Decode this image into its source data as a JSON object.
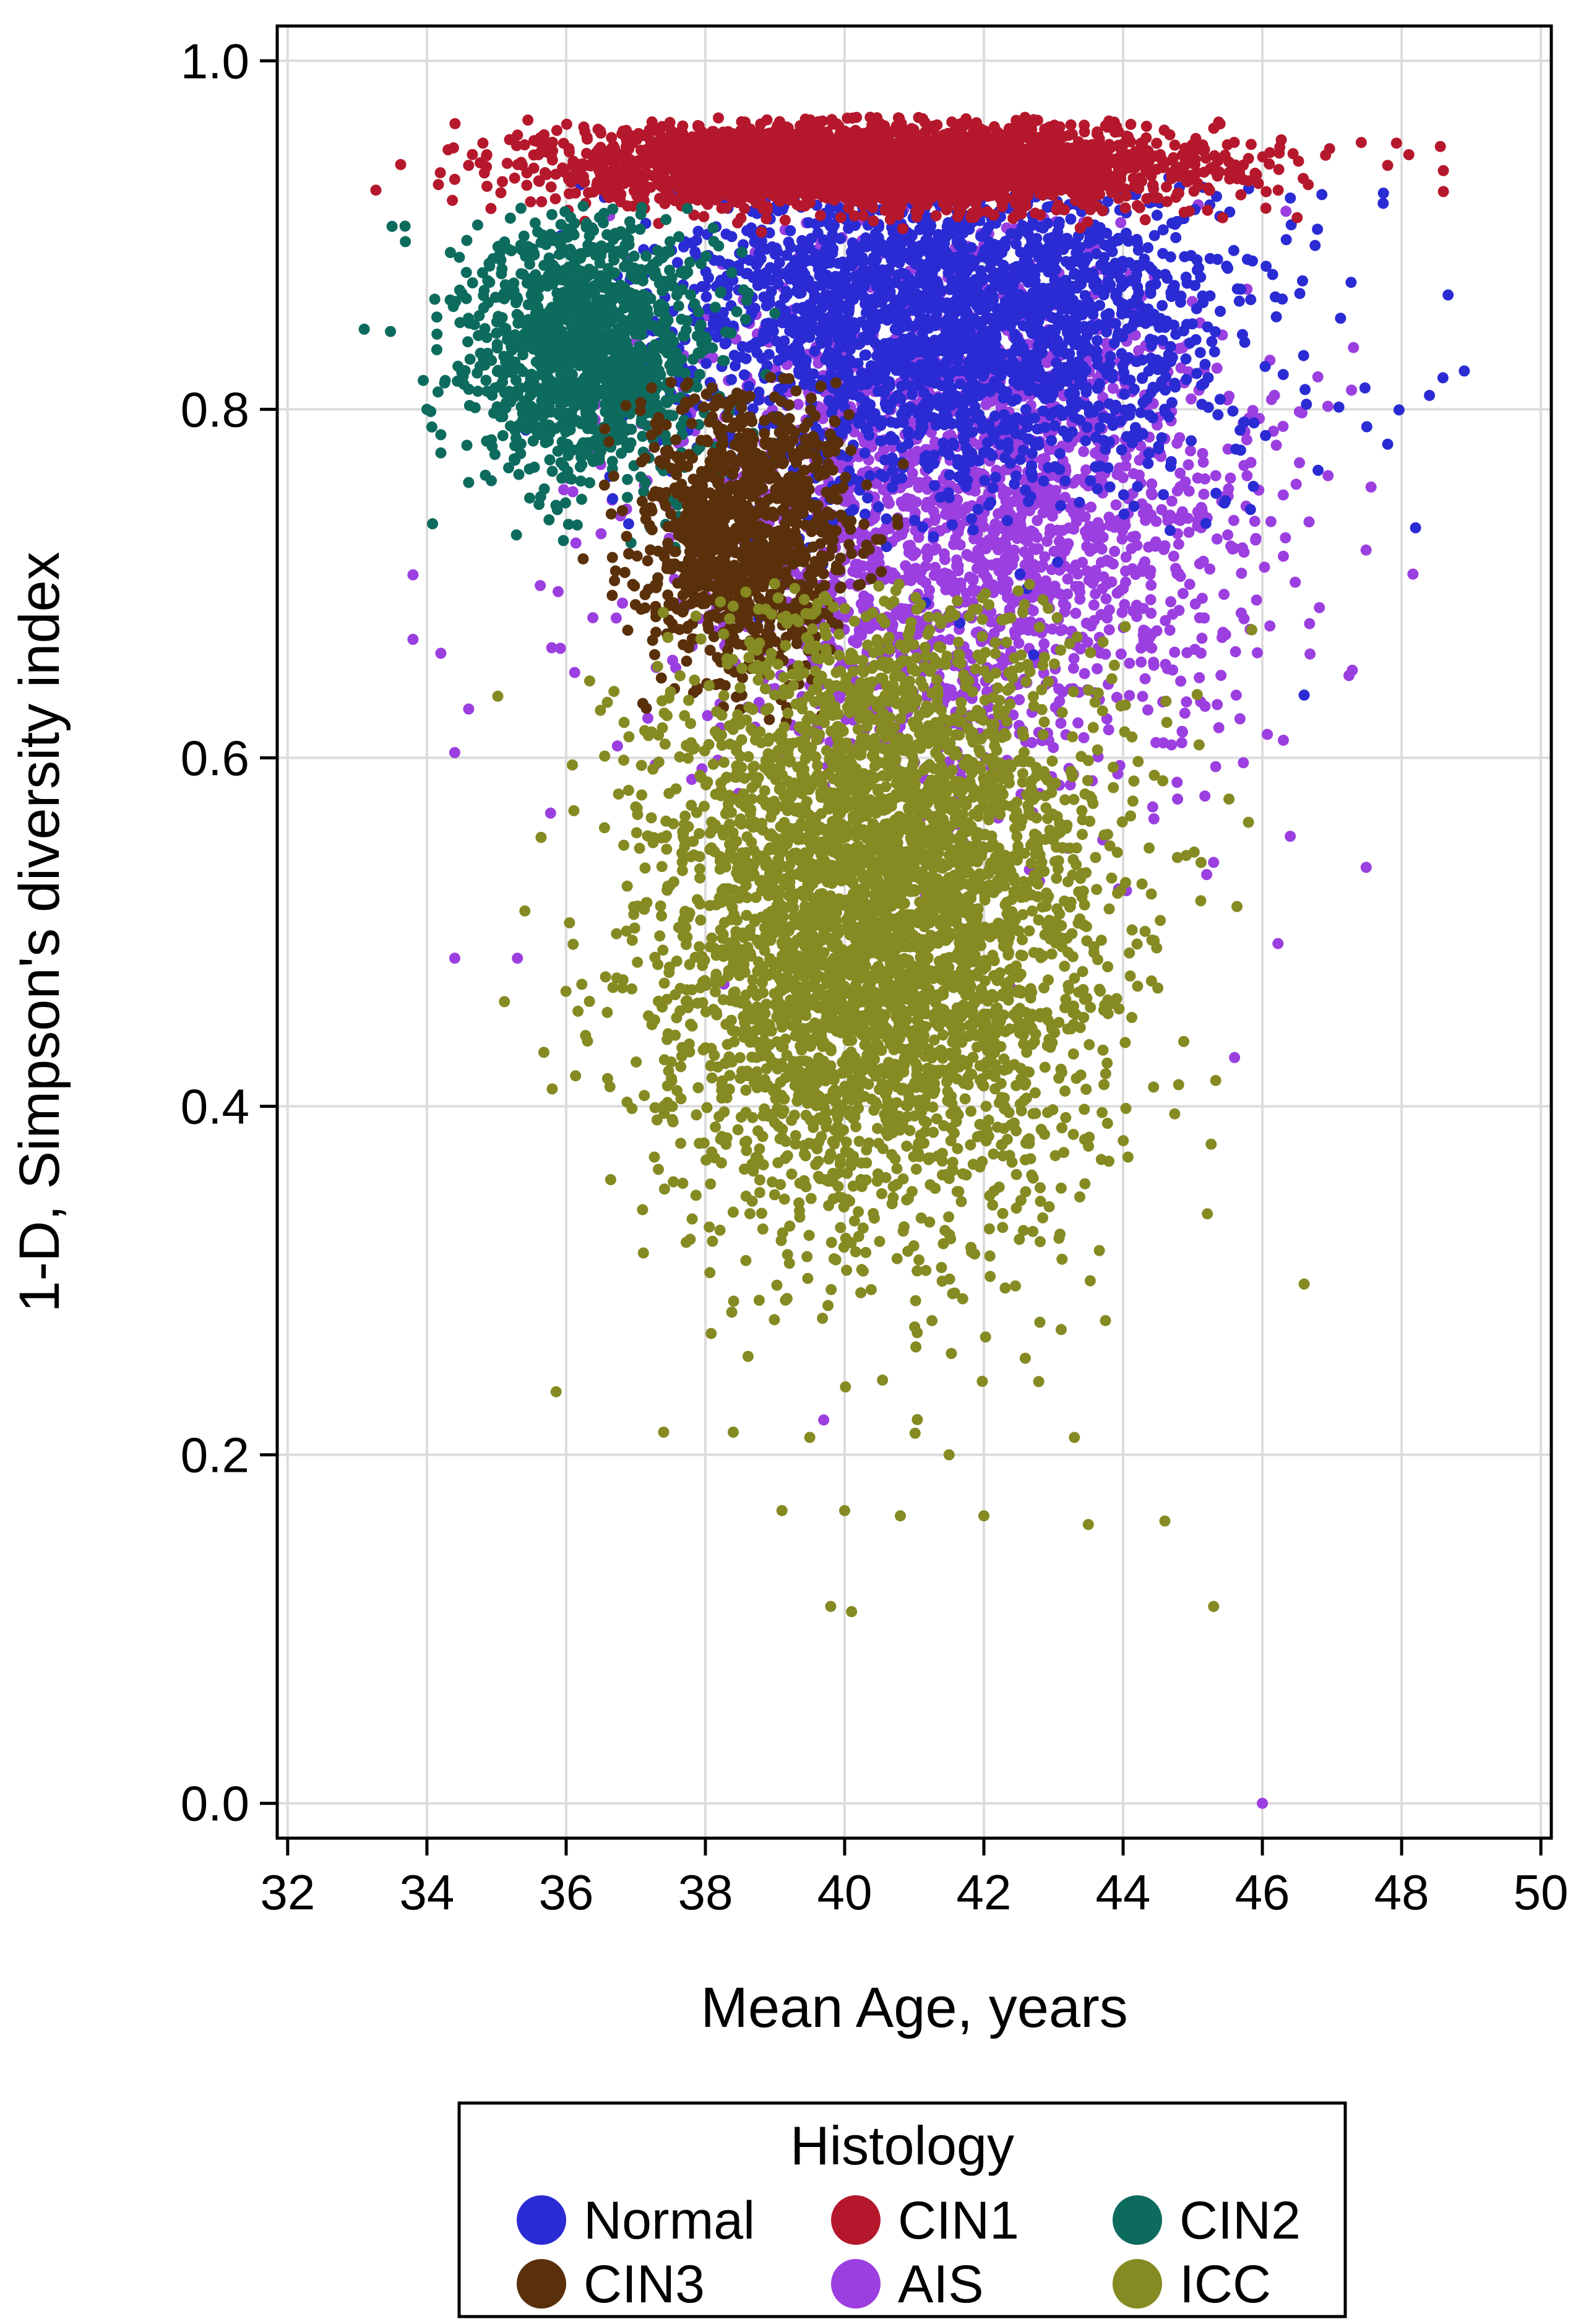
{
  "chart_data": {
    "type": "scatter",
    "xlabel": "Mean Age, years",
    "ylabel": "1-D, Simpson's diversity index",
    "xlim": [
      32,
      50
    ],
    "ylim": [
      0.0,
      1.0
    ],
    "x_ticks": [
      32,
      34,
      36,
      38,
      40,
      42,
      44,
      46,
      48,
      50
    ],
    "x_tick_labels": [
      "32",
      "34",
      "36",
      "38",
      "40",
      "42",
      "44",
      "46",
      "48",
      "50"
    ],
    "y_ticks": [
      0.0,
      0.2,
      0.4,
      0.6,
      0.8,
      1.0
    ],
    "y_tick_labels": [
      "0.0",
      "0.2",
      "0.4",
      "0.6",
      "0.8",
      "1.0"
    ],
    "grid": true,
    "legend": {
      "title": "Histology",
      "placement": "bottom",
      "columns": 3
    },
    "series": [
      {
        "name": "Normal",
        "color": "#2b2bd4",
        "cloud": {
          "x_mean": 41.5,
          "x_sd": 2.0,
          "y_mean": 0.855,
          "y_sd": 0.05,
          "y_min": 0.61,
          "y_max": 0.935,
          "count": 2600
        },
        "points": [
          [
            48.9,
            0.822
          ],
          [
            48.4,
            0.808
          ],
          [
            48.2,
            0.732
          ],
          [
            47.8,
            0.78
          ],
          [
            47.5,
            0.79
          ],
          [
            46.6,
            0.636
          ],
          [
            46.3,
            0.82
          ],
          [
            46.8,
            0.765
          ]
        ]
      },
      {
        "name": "AIS",
        "color": "#9b3fe0",
        "cloud": {
          "x_mean": 41.8,
          "x_sd": 2.0,
          "y_mean": 0.74,
          "y_sd": 0.08,
          "y_min": 0.42,
          "y_max": 0.92,
          "count": 2200
        },
        "points": [
          [
            33.8,
            0.705
          ],
          [
            33.8,
            0.668
          ],
          [
            34.2,
            0.66
          ],
          [
            34.4,
            0.603
          ],
          [
            34.6,
            0.628
          ],
          [
            34.4,
            0.485
          ],
          [
            35.3,
            0.485
          ],
          [
            46.0,
            0.0
          ],
          [
            45.6,
            0.428
          ],
          [
            46.4,
            0.555
          ],
          [
            45.3,
            0.54
          ],
          [
            39.7,
            0.22
          ]
        ]
      },
      {
        "name": "CIN1",
        "color": "#b5182c",
        "cloud": {
          "x_mean": 40.5,
          "x_sd": 2.3,
          "y_mean": 0.94,
          "y_sd": 0.012,
          "y_min": 0.9,
          "y_max": 0.968,
          "count": 3000
        },
        "points": [
          [
            34.6,
            0.94
          ],
          [
            48.6,
            0.925
          ],
          [
            48.6,
            0.937
          ],
          [
            47.8,
            0.94
          ],
          [
            46.5,
            0.91
          ],
          [
            34.4,
            0.932
          ]
        ]
      },
      {
        "name": "CIN2",
        "color": "#0d6b5e",
        "cloud": {
          "x_mean": 36.3,
          "x_sd": 0.85,
          "y_mean": 0.835,
          "y_sd": 0.038,
          "y_min": 0.72,
          "y_max": 0.92,
          "count": 1300
        },
        "points": [
          [
            33.1,
            0.846
          ],
          [
            33.5,
            0.905
          ],
          [
            34.0,
            0.8
          ],
          [
            34.6,
            0.758
          ],
          [
            34.2,
            0.775
          ]
        ]
      },
      {
        "name": "CIN3",
        "color": "#5a300b",
        "cloud": {
          "x_mean": 38.6,
          "x_sd": 0.75,
          "y_mean": 0.73,
          "y_sd": 0.042,
          "y_min": 0.62,
          "y_max": 0.82,
          "count": 1100
        },
        "points": []
      },
      {
        "name": "ICC",
        "color": "#858a22",
        "cloud": {
          "x_mean": 40.5,
          "x_sd": 1.55,
          "y_mean": 0.51,
          "y_sd": 0.09,
          "y_min": 0.2,
          "y_max": 0.7,
          "count": 4200
        },
        "points": [
          [
            39.8,
            0.113
          ],
          [
            40.1,
            0.11
          ],
          [
            45.3,
            0.113
          ],
          [
            46.6,
            0.298
          ],
          [
            45.8,
            0.563
          ],
          [
            36.1,
            0.493
          ],
          [
            35.8,
            0.41
          ],
          [
            39.1,
            0.168
          ],
          [
            40.0,
            0.168
          ],
          [
            40.8,
            0.165
          ],
          [
            42.0,
            0.165
          ],
          [
            43.5,
            0.16
          ],
          [
            44.6,
            0.162
          ],
          [
            39.5,
            0.21
          ],
          [
            41.5,
            0.2
          ],
          [
            43.3,
            0.21
          ],
          [
            37.4,
            0.213
          ],
          [
            38.4,
            0.213
          ]
        ]
      }
    ]
  }
}
